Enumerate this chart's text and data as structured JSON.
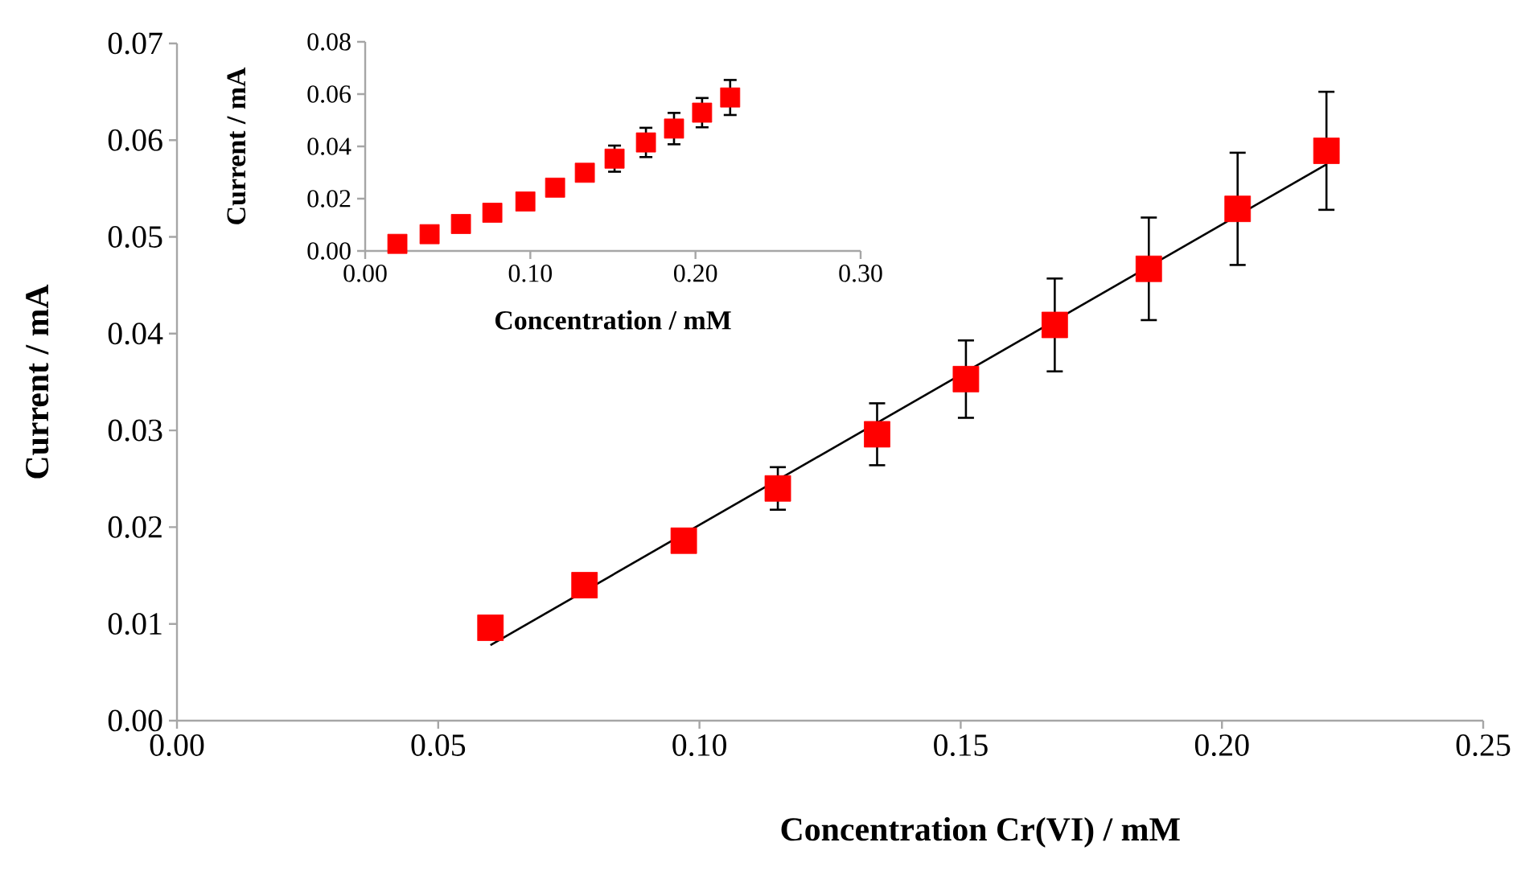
{
  "chart_data": [
    {
      "type": "scatter",
      "xlabel": "Concentration Cr(VI) / mM",
      "ylabel": "Current / mA",
      "marker": "square",
      "xlim": [
        0,
        0.25
      ],
      "ylim": [
        0,
        0.07
      ],
      "xticks": [
        {
          "value": 0,
          "label": "0.00"
        },
        {
          "value": 0.05,
          "label": "0.05"
        },
        {
          "value": 0.1,
          "label": "0.10"
        },
        {
          "value": 0.15,
          "label": "0.15"
        },
        {
          "value": 0.2,
          "label": "0.20"
        },
        {
          "value": 0.25,
          "label": "0.25"
        }
      ],
      "yticks": [
        {
          "value": 0,
          "label": "0.00"
        },
        {
          "value": 0.01,
          "label": "0.01"
        },
        {
          "value": 0.02,
          "label": "0.02"
        },
        {
          "value": 0.03,
          "label": "0.03"
        },
        {
          "value": 0.04,
          "label": "0.04"
        },
        {
          "value": 0.05,
          "label": "0.05"
        },
        {
          "value": 0.06,
          "label": "0.06"
        },
        {
          "value": 0.07,
          "label": "0.07"
        }
      ],
      "series": [
        {
          "color": "#ff0000",
          "x": [
            0.06,
            0.078,
            0.097,
            0.115,
            0.134,
            0.151,
            0.168,
            0.186,
            0.203,
            0.22
          ],
          "values": [
            0.0096,
            0.014,
            0.0186,
            0.024,
            0.0296,
            0.0353,
            0.0409,
            0.0467,
            0.0529,
            0.0589
          ],
          "errors": [
            null,
            null,
            null,
            0.0022,
            0.0032,
            0.004,
            0.0048,
            0.0053,
            0.0058,
            0.0061
          ]
        },
        {
          "type": "line",
          "color": "#000000",
          "marker": "none",
          "x": [
            0.06,
            0.22
          ],
          "values": [
            0.0078,
            0.0575
          ]
        }
      ]
    },
    {
      "type": "scatter",
      "xlabel": "Concentration / mM",
      "ylabel": "Current / mA",
      "marker": "square",
      "xlim": [
        0,
        0.3
      ],
      "ylim": [
        0,
        0.08
      ],
      "xticks": [
        {
          "value": 0,
          "label": "0.00"
        },
        {
          "value": 0.1,
          "label": "0.10"
        },
        {
          "value": 0.2,
          "label": "0.20"
        },
        {
          "value": 0.3,
          "label": "0.30"
        }
      ],
      "yticks": [
        {
          "value": 0,
          "label": "0.00"
        },
        {
          "value": 0.02,
          "label": "0.02"
        },
        {
          "value": 0.04,
          "label": "0.04"
        },
        {
          "value": 0.06,
          "label": "0.06"
        },
        {
          "value": 0.08,
          "label": "0.08"
        }
      ],
      "series": [
        {
          "color": "#ff0000",
          "x": [
            0.0195,
            0.039,
            0.058,
            0.077,
            0.097,
            0.115,
            0.133,
            0.151,
            0.17,
            0.187,
            0.204,
            0.221
          ],
          "values": [
            0.0027,
            0.0064,
            0.0103,
            0.0146,
            0.0189,
            0.0242,
            0.0299,
            0.0353,
            0.0415,
            0.0468,
            0.0529,
            0.0587
          ],
          "errors": [
            null,
            null,
            null,
            null,
            null,
            null,
            null,
            0.005,
            0.0056,
            0.006,
            0.0056,
            0.0067
          ]
        }
      ]
    }
  ]
}
